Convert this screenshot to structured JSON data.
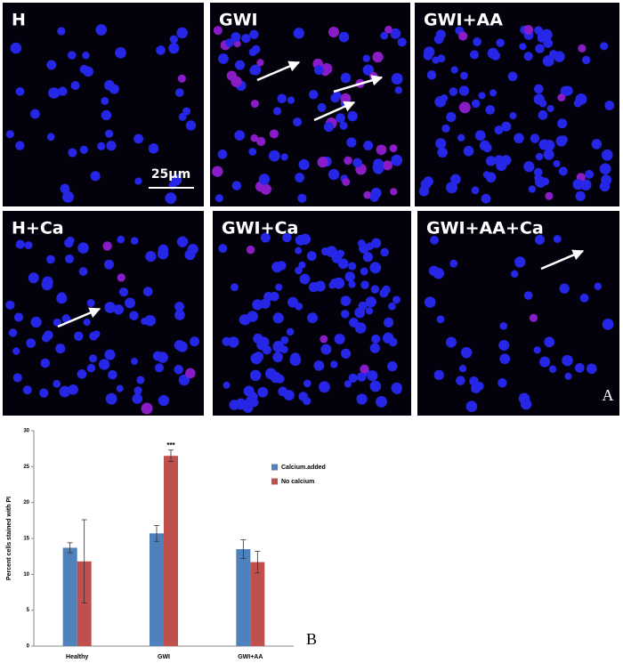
{
  "figure": {
    "panels": [
      {
        "label": "H"
      },
      {
        "label": "GWI"
      },
      {
        "label": "GWI+AA"
      },
      {
        "label": "H+Ca"
      },
      {
        "label": "GWI+Ca"
      },
      {
        "label": "GWI+AA+Ca"
      }
    ],
    "scale_bar": "25µm",
    "letter": "A"
  },
  "chart_data": {
    "type": "bar",
    "panel_letter": "B",
    "y_label": "Percent cells stained with PI",
    "categories": [
      "Healthy",
      "GWI",
      "GWI+AA"
    ],
    "series": [
      {
        "name": "Calcium.added",
        "color": "#4f81bd",
        "values": [
          13.7,
          15.7,
          13.5
        ],
        "errors": [
          0.7,
          1.1,
          1.3
        ]
      },
      {
        "name": "No calcium",
        "color": "#c0504d",
        "values": [
          11.8,
          26.5,
          11.7
        ],
        "errors": [
          5.8,
          0.8,
          1.5
        ]
      }
    ],
    "annotations": [
      {
        "text": "***",
        "series": 1,
        "category": 1
      }
    ],
    "ylim": [
      0,
      30
    ],
    "yticks": [
      0,
      5,
      10,
      15,
      20,
      25,
      30
    ],
    "grid": false,
    "legend": "right"
  }
}
